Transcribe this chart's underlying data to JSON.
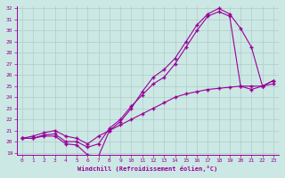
{
  "bg_color": "#cce8e4",
  "line_color": "#990099",
  "grid_color": "#b0ccc8",
  "ylim": [
    19,
    32
  ],
  "xlim": [
    -0.5,
    23.5
  ],
  "yticks": [
    19,
    20,
    21,
    22,
    23,
    24,
    25,
    26,
    27,
    28,
    29,
    30,
    31,
    32
  ],
  "xticks": [
    0,
    1,
    2,
    3,
    4,
    5,
    6,
    7,
    8,
    9,
    10,
    11,
    12,
    13,
    14,
    15,
    16,
    17,
    18,
    19,
    20,
    21,
    22,
    23
  ],
  "xlabel": "Windchill (Refroidissement éolien,°C)",
  "line1_x": [
    0,
    1,
    2,
    3,
    4,
    5,
    6,
    7,
    8,
    9,
    10,
    11,
    12,
    13,
    14,
    15,
    16,
    17,
    18,
    19,
    20,
    21,
    22,
    23
  ],
  "line1_y": [
    20.3,
    20.3,
    20.5,
    20.5,
    19.8,
    19.7,
    18.8,
    18.7,
    21.0,
    21.8,
    23.0,
    24.5,
    25.8,
    26.5,
    27.5,
    29.0,
    30.5,
    31.5,
    32.0,
    31.5,
    30.2,
    28.5,
    25.0,
    25.5
  ],
  "line2_x": [
    0,
    1,
    2,
    3,
    4,
    5,
    6,
    7,
    8,
    9,
    10,
    11,
    12,
    13,
    14,
    15,
    16,
    17,
    18,
    19,
    20,
    21,
    22,
    23
  ],
  "line2_y": [
    20.3,
    20.3,
    20.6,
    20.7,
    20.0,
    20.0,
    19.5,
    19.8,
    21.2,
    22.0,
    23.2,
    24.2,
    25.2,
    25.8,
    27.0,
    28.5,
    30.0,
    31.3,
    31.7,
    31.3,
    25.0,
    24.7,
    25.0,
    25.5
  ],
  "line3_x": [
    0,
    1,
    2,
    3,
    4,
    5,
    6,
    7,
    8,
    9,
    10,
    11,
    12,
    13,
    14,
    15,
    16,
    17,
    18,
    19,
    20,
    21,
    22,
    23
  ],
  "line3_y": [
    20.3,
    20.5,
    20.8,
    21.0,
    20.5,
    20.3,
    19.8,
    20.5,
    21.0,
    21.5,
    22.0,
    22.5,
    23.0,
    23.5,
    24.0,
    24.3,
    24.5,
    24.7,
    24.8,
    24.9,
    25.0,
    25.0,
    25.0,
    25.2
  ]
}
